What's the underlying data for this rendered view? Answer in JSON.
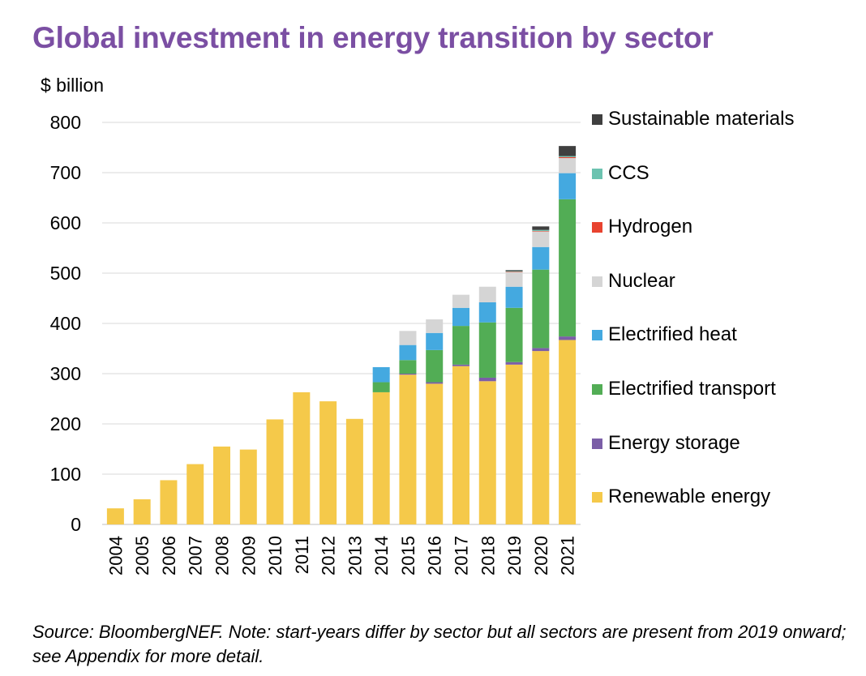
{
  "title": "Global investment in energy transition by sector",
  "unit_label": "$ billion",
  "note": "Source: BloombergNEF. Note: start-years differ by sector but all sectors are present from 2019 onward; see Appendix for more detail.",
  "colors": {
    "Renewable energy": "#f5c94a",
    "Energy storage": "#7b5ea7",
    "Electrified transport": "#52ad55",
    "Electrified heat": "#44a9e0",
    "Nuclear": "#d5d5d5",
    "Hydrogen": "#e8432f",
    "CCS": "#6cc3b0",
    "Sustainable materials": "#3f3f3f"
  },
  "legend_order": [
    "Sustainable materials",
    "CCS",
    "Hydrogen",
    "Nuclear",
    "Electrified heat",
    "Electrified transport",
    "Energy storage",
    "Renewable energy"
  ],
  "chart_data": {
    "type": "bar",
    "stacked": true,
    "categories": [
      "2004",
      "2005",
      "2006",
      "2007",
      "2008",
      "2009",
      "2010",
      "2011",
      "2012",
      "2013",
      "2014",
      "2015",
      "2016",
      "2017",
      "2018",
      "2019",
      "2020",
      "2021"
    ],
    "series": [
      {
        "name": "Renewable energy",
        "values": [
          32,
          50,
          88,
          120,
          155,
          149,
          209,
          263,
          245,
          210,
          263,
          298,
          280,
          315,
          285,
          318,
          345,
          367
        ]
      },
      {
        "name": "Energy storage",
        "values": [
          0,
          0,
          0,
          0,
          0,
          0,
          0,
          0,
          0,
          0,
          0,
          2,
          3,
          3,
          7,
          5,
          6,
          7
        ]
      },
      {
        "name": "Electrified transport",
        "values": [
          0,
          0,
          0,
          0,
          0,
          0,
          0,
          0,
          0,
          0,
          20,
          27,
          64,
          77,
          110,
          108,
          156,
          273
        ]
      },
      {
        "name": "Electrified heat",
        "values": [
          0,
          0,
          0,
          0,
          0,
          0,
          0,
          0,
          0,
          0,
          30,
          30,
          34,
          36,
          40,
          42,
          45,
          52
        ]
      },
      {
        "name": "Nuclear",
        "values": [
          0,
          0,
          0,
          0,
          0,
          0,
          0,
          0,
          0,
          0,
          0,
          28,
          27,
          26,
          31,
          29,
          31,
          30
        ]
      },
      {
        "name": "Hydrogen",
        "values": [
          0,
          0,
          0,
          0,
          0,
          0,
          0,
          0,
          0,
          0,
          0,
          0,
          0,
          0,
          0,
          1,
          1,
          2
        ]
      },
      {
        "name": "CCS",
        "values": [
          0,
          0,
          0,
          0,
          0,
          0,
          0,
          0,
          0,
          0,
          0,
          0,
          0,
          0,
          0,
          1,
          2,
          2
        ]
      },
      {
        "name": "Sustainable materials",
        "values": [
          0,
          0,
          0,
          0,
          0,
          0,
          0,
          0,
          0,
          0,
          0,
          0,
          0,
          0,
          0,
          2,
          7,
          20
        ]
      }
    ],
    "ylim": [
      0,
      800
    ],
    "yticks": [
      0,
      100,
      200,
      300,
      400,
      500,
      600,
      700,
      800
    ],
    "ylabel": "$ billion",
    "grid": true,
    "legend": "right"
  }
}
